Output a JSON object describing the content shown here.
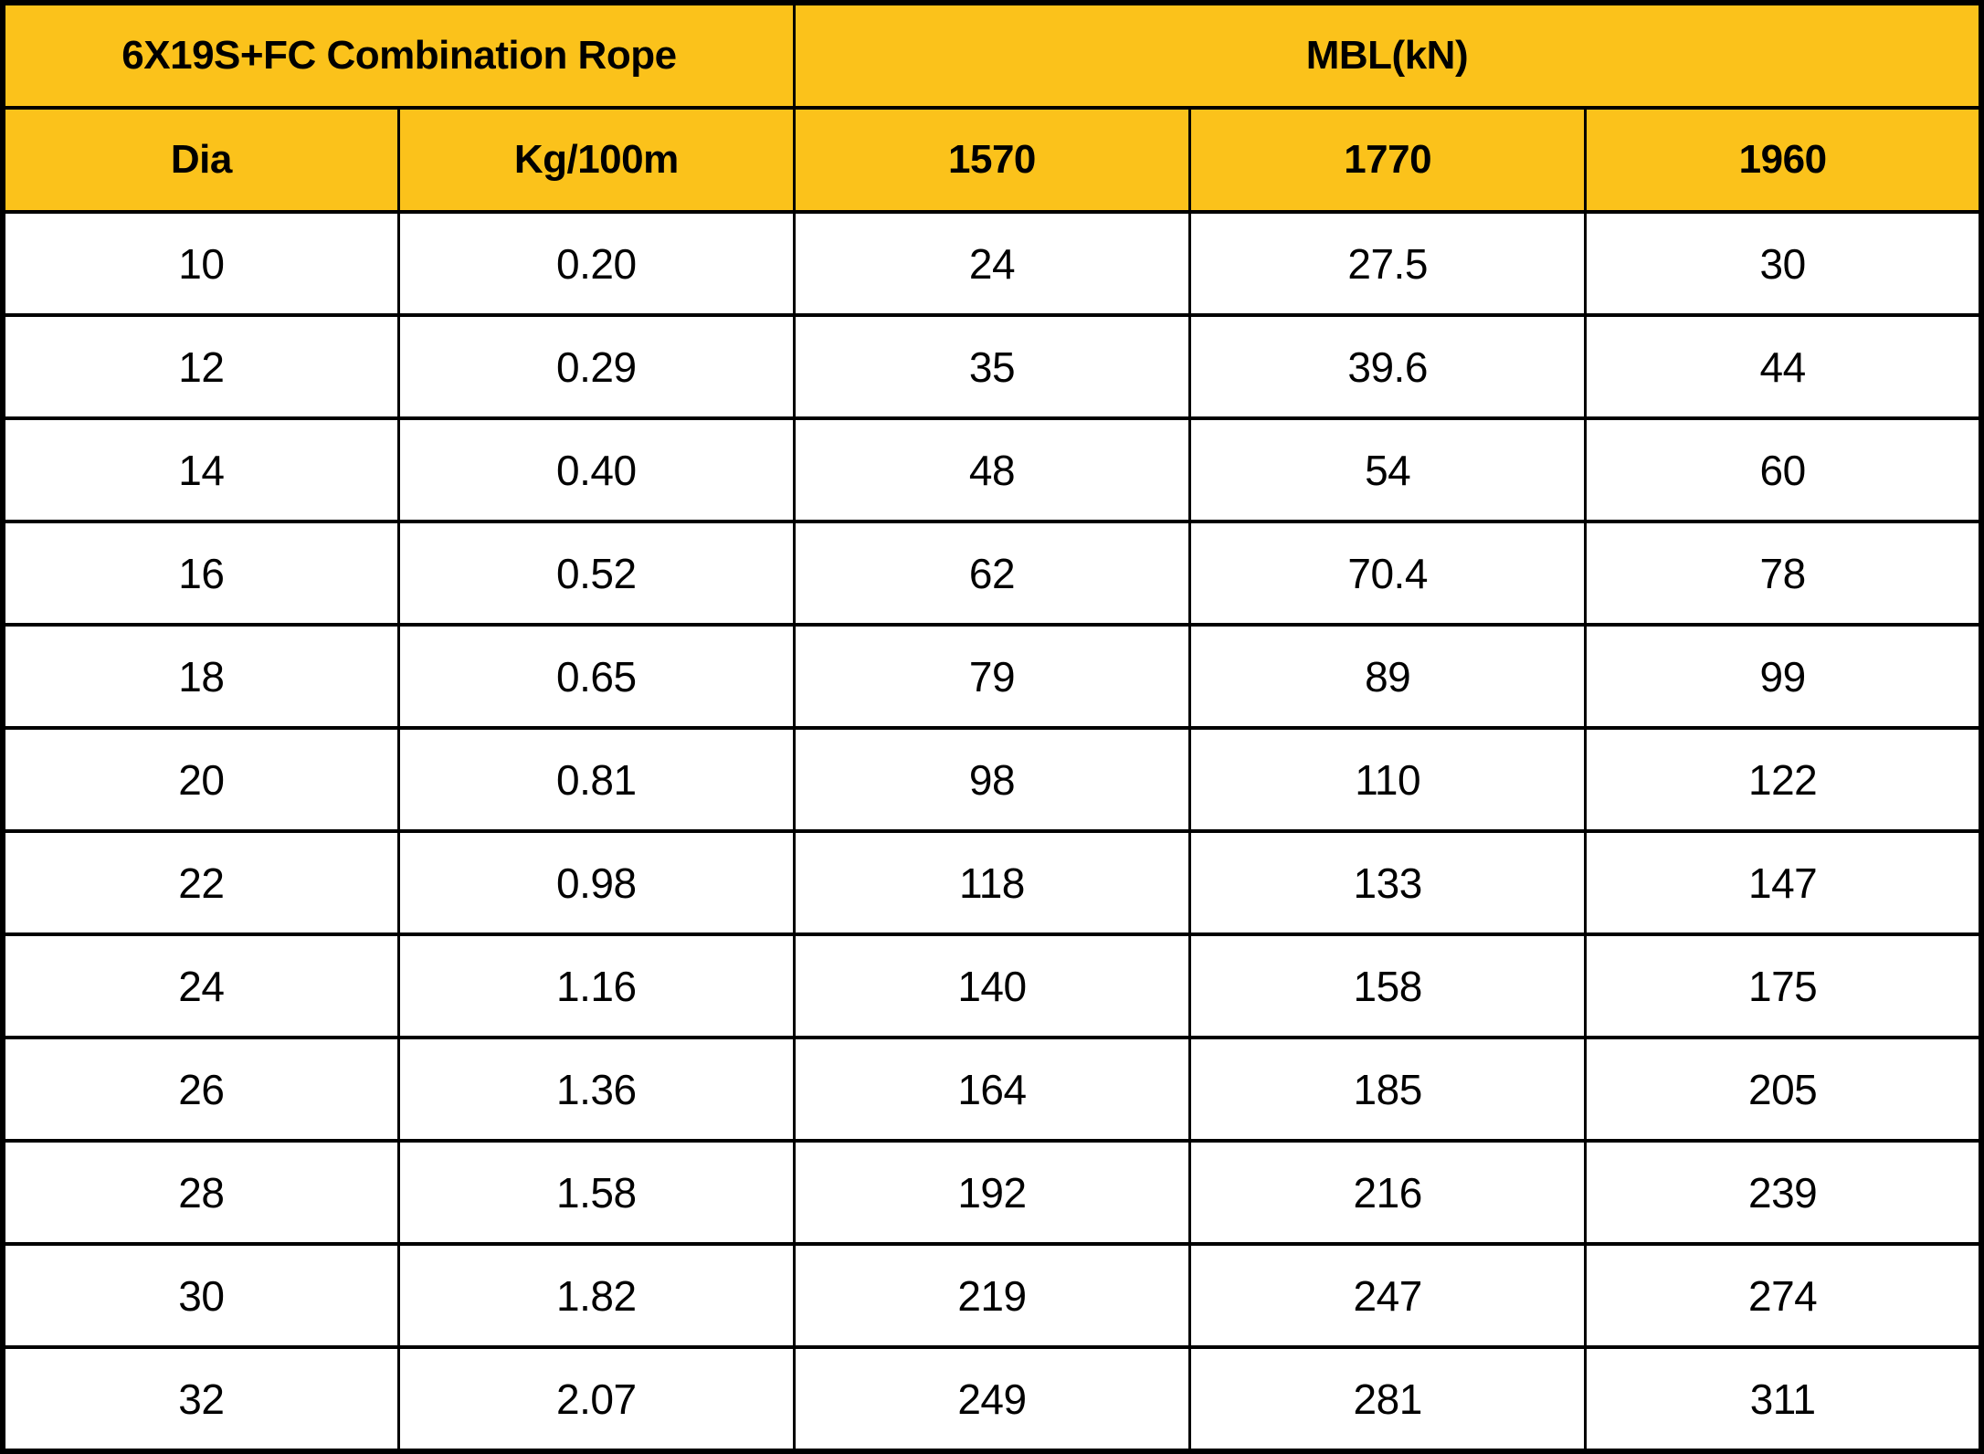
{
  "colors": {
    "header_bg": "#FBC21B",
    "border": "#000000",
    "cell_bg": "#FFFFFF",
    "text": "#000000"
  },
  "table": {
    "group_headers": [
      {
        "label": "6X19S+FC Combination Rope",
        "colspan": 2
      },
      {
        "label": "MBL(kN)",
        "colspan": 3
      }
    ],
    "columns": [
      "Dia",
      "Kg/100m",
      "1570",
      "1770",
      "1960"
    ],
    "rows": [
      [
        "10",
        "0.20",
        "24",
        "27.5",
        "30"
      ],
      [
        "12",
        "0.29",
        "35",
        "39.6",
        "44"
      ],
      [
        "14",
        "0.40",
        "48",
        "54",
        "60"
      ],
      [
        "16",
        "0.52",
        "62",
        "70.4",
        "78"
      ],
      [
        "18",
        "0.65",
        "79",
        "89",
        "99"
      ],
      [
        "20",
        "0.81",
        "98",
        "110",
        "122"
      ],
      [
        "22",
        "0.98",
        "118",
        "133",
        "147"
      ],
      [
        "24",
        "1.16",
        "140",
        "158",
        "175"
      ],
      [
        "26",
        "1.36",
        "164",
        "185",
        "205"
      ],
      [
        "28",
        "1.58",
        "192",
        "216",
        "239"
      ],
      [
        "30",
        "1.82",
        "219",
        "247",
        "274"
      ],
      [
        "32",
        "2.07",
        "249",
        "281",
        "311"
      ]
    ]
  },
  "chart_data": {
    "type": "table",
    "title": "6X19S+FC Combination Rope",
    "group_headers": [
      {
        "label": "6X19S+FC Combination Rope",
        "colspan": 2
      },
      {
        "label": "MBL(kN)",
        "colspan": 3
      }
    ],
    "columns": [
      "Dia",
      "Kg/100m",
      "1570",
      "1770",
      "1960"
    ],
    "rows": [
      [
        "10",
        "0.20",
        "24",
        "27.5",
        "30"
      ],
      [
        "12",
        "0.29",
        "35",
        "39.6",
        "44"
      ],
      [
        "14",
        "0.40",
        "48",
        "54",
        "60"
      ],
      [
        "16",
        "0.52",
        "62",
        "70.4",
        "78"
      ],
      [
        "18",
        "0.65",
        "79",
        "89",
        "99"
      ],
      [
        "20",
        "0.81",
        "98",
        "110",
        "122"
      ],
      [
        "22",
        "0.98",
        "118",
        "133",
        "147"
      ],
      [
        "24",
        "1.16",
        "140",
        "158",
        "175"
      ],
      [
        "26",
        "1.36",
        "164",
        "185",
        "205"
      ],
      [
        "28",
        "1.58",
        "192",
        "216",
        "239"
      ],
      [
        "30",
        "1.82",
        "219",
        "247",
        "274"
      ],
      [
        "32",
        "2.07",
        "249",
        "281",
        "311"
      ]
    ],
    "layout_hints": {
      "header_background": "#FBC21B",
      "grid": true,
      "value_units": {
        "Kg/100m": "kg per 100 m",
        "1570/1770/1960": "MBL in kN by rope grade"
      }
    }
  }
}
